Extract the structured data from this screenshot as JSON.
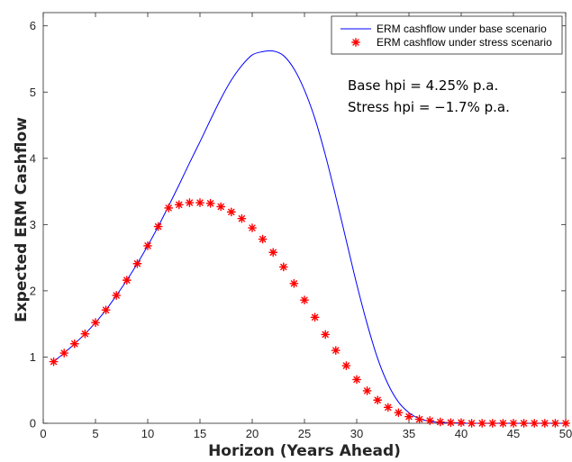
{
  "chart_data": {
    "type": "line",
    "xlabel": "Horizon (Years Ahead)",
    "ylabel": "Expected ERM Cashflow",
    "xlim": [
      0,
      50
    ],
    "ylim": [
      0,
      6.2
    ],
    "xticks": [
      0,
      5,
      10,
      15,
      20,
      25,
      30,
      35,
      40,
      45,
      50
    ],
    "yticks": [
      0,
      1,
      2,
      3,
      4,
      5,
      6
    ],
    "grid": false,
    "legend_position": "top-right",
    "annotations": [
      "Base hpi = 4.25% p.a.",
      "Stress hpi = −1.7% p.a."
    ],
    "colors": {
      "base": "#0000ff",
      "stress": "#ff0000",
      "axes": "#262626"
    },
    "series": [
      {
        "name": "ERM cashflow under base scenario",
        "style": "line",
        "x": [
          1,
          2,
          3,
          4,
          5,
          6,
          7,
          8,
          9,
          10,
          11,
          12,
          13,
          14,
          15,
          16,
          17,
          18,
          19,
          20,
          21,
          22,
          23,
          24,
          25,
          26,
          27,
          28,
          29,
          30,
          31,
          32,
          33,
          34,
          35,
          36,
          37,
          38,
          39,
          40,
          41,
          42,
          43,
          44,
          45,
          46,
          47,
          48,
          49,
          50
        ],
        "values": [
          0.93,
          1.06,
          1.2,
          1.35,
          1.52,
          1.71,
          1.93,
          2.16,
          2.41,
          2.68,
          2.97,
          3.28,
          3.6,
          3.93,
          4.25,
          4.58,
          4.9,
          5.18,
          5.4,
          5.56,
          5.61,
          5.62,
          5.55,
          5.35,
          5.03,
          4.6,
          4.05,
          3.42,
          2.76,
          2.1,
          1.5,
          0.98,
          0.59,
          0.32,
          0.16,
          0.07,
          0.03,
          0.01,
          0.01,
          0,
          0,
          0,
          0,
          0,
          0,
          0,
          0,
          0,
          0,
          0
        ]
      },
      {
        "name": "ERM cashflow under stress scenario",
        "style": "markers",
        "marker": "asterisk",
        "x": [
          1,
          2,
          3,
          4,
          5,
          6,
          7,
          8,
          9,
          10,
          11,
          12,
          13,
          14,
          15,
          16,
          17,
          18,
          19,
          20,
          21,
          22,
          23,
          24,
          25,
          26,
          27,
          28,
          29,
          30,
          31,
          32,
          33,
          34,
          35,
          36,
          37,
          38,
          39,
          40,
          41,
          42,
          43,
          44,
          45,
          46,
          47,
          48,
          49,
          50
        ],
        "values": [
          0.93,
          1.06,
          1.2,
          1.35,
          1.52,
          1.71,
          1.93,
          2.16,
          2.41,
          2.68,
          2.97,
          3.25,
          3.3,
          3.33,
          3.33,
          3.32,
          3.27,
          3.19,
          3.09,
          2.95,
          2.78,
          2.58,
          2.36,
          2.11,
          1.86,
          1.6,
          1.34,
          1.1,
          0.87,
          0.66,
          0.49,
          0.35,
          0.24,
          0.16,
          0.1,
          0.06,
          0.04,
          0.02,
          0.01,
          0.01,
          0,
          0,
          0,
          0,
          0,
          0,
          0,
          0,
          0,
          0
        ]
      }
    ]
  }
}
